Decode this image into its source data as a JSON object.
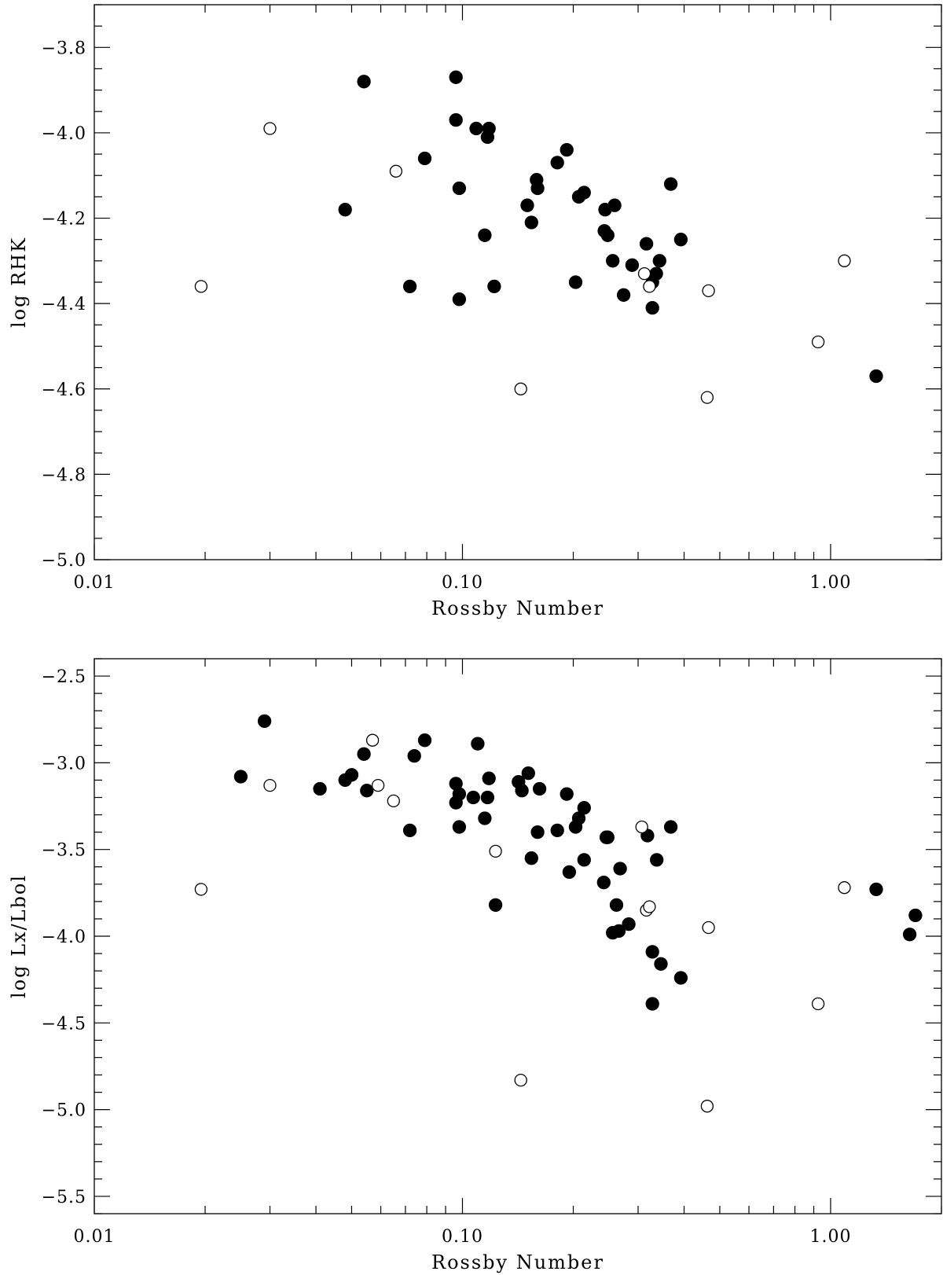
{
  "chart_data": [
    {
      "type": "scatter",
      "x_scale": "log",
      "xlim": [
        0.01,
        2.0
      ],
      "ylim": [
        -5.0,
        -3.7
      ],
      "xlabel": "Rossby Number",
      "ylabel": "log RHK",
      "x_ticks": [
        "0.01",
        "0.10",
        "1.00"
      ],
      "x_tick_values": [
        0.01,
        0.1,
        1.0
      ],
      "y_ticks": [
        "-3.8",
        "-4.0",
        "-4.2",
        "-4.4",
        "-4.6",
        "-4.8",
        "-5.0"
      ],
      "y_tick_values": [
        -3.8,
        -4.0,
        -4.2,
        -4.4,
        -4.6,
        -4.8,
        -5.0
      ],
      "y_minor_step": 0.05,
      "series": [
        {
          "marker": "filled-circle",
          "points": [
            [
              0.054,
              -3.88
            ],
            [
              0.096,
              -3.87
            ],
            [
              0.096,
              -3.97
            ],
            [
              0.109,
              -3.99
            ],
            [
              0.118,
              -3.99
            ],
            [
              0.117,
              -4.01
            ],
            [
              0.079,
              -4.06
            ],
            [
              0.192,
              -4.04
            ],
            [
              0.181,
              -4.07
            ],
            [
              0.159,
              -4.11
            ],
            [
              0.16,
              -4.13
            ],
            [
              0.098,
              -4.13
            ],
            [
              0.214,
              -4.14
            ],
            [
              0.207,
              -4.15
            ],
            [
              0.368,
              -4.12
            ],
            [
              0.15,
              -4.17
            ],
            [
              0.259,
              -4.17
            ],
            [
              0.244,
              -4.18
            ],
            [
              0.048,
              -4.18
            ],
            [
              0.154,
              -4.21
            ],
            [
              0.115,
              -4.24
            ],
            [
              0.243,
              -4.23
            ],
            [
              0.248,
              -4.24
            ],
            [
              0.316,
              -4.26
            ],
            [
              0.392,
              -4.25
            ],
            [
              0.256,
              -4.3
            ],
            [
              0.289,
              -4.31
            ],
            [
              0.343,
              -4.3
            ],
            [
              0.336,
              -4.33
            ],
            [
              0.328,
              -4.35
            ],
            [
              0.203,
              -4.35
            ],
            [
              0.122,
              -4.36
            ],
            [
              0.072,
              -4.36
            ],
            [
              0.098,
              -4.39
            ],
            [
              0.274,
              -4.38
            ],
            [
              0.328,
              -4.41
            ],
            [
              1.33,
              -4.57
            ]
          ]
        },
        {
          "marker": "open-circle",
          "points": [
            [
              0.0195,
              -4.36
            ],
            [
              0.03,
              -3.99
            ],
            [
              0.066,
              -4.09
            ],
            [
              0.144,
              -4.6
            ],
            [
              0.312,
              -4.33
            ],
            [
              0.322,
              -4.36
            ],
            [
              0.466,
              -4.37
            ],
            [
              0.462,
              -4.62
            ],
            [
              0.925,
              -4.49
            ],
            [
              1.09,
              -4.3
            ]
          ]
        }
      ]
    },
    {
      "type": "scatter",
      "x_scale": "log",
      "xlim": [
        0.01,
        2.0
      ],
      "ylim": [
        -5.6,
        -2.4
      ],
      "xlabel": "Rossby Number",
      "ylabel": "log Lx/Lbol",
      "x_ticks": [
        "0.01",
        "0.10",
        "1.00"
      ],
      "x_tick_values": [
        0.01,
        0.1,
        1.0
      ],
      "y_ticks": [
        "-2.5",
        "-3.0",
        "-3.5",
        "-4.0",
        "-4.5",
        "-5.0",
        "-5.5"
      ],
      "y_tick_values": [
        -2.5,
        -3.0,
        -3.5,
        -4.0,
        -4.5,
        -5.0,
        -5.5
      ],
      "y_minor_step": 0.1,
      "series": [
        {
          "marker": "filled-circle",
          "points": [
            [
              0.029,
              -2.76
            ],
            [
              0.025,
              -3.08
            ],
            [
              0.041,
              -3.15
            ],
            [
              0.048,
              -3.1
            ],
            [
              0.05,
              -3.07
            ],
            [
              0.054,
              -2.95
            ],
            [
              0.055,
              -3.16
            ],
            [
              0.072,
              -3.39
            ],
            [
              0.074,
              -2.96
            ],
            [
              0.079,
              -2.87
            ],
            [
              0.096,
              -3.12
            ],
            [
              0.096,
              -3.23
            ],
            [
              0.098,
              -3.18
            ],
            [
              0.098,
              -3.37
            ],
            [
              0.107,
              -3.2
            ],
            [
              0.11,
              -2.89
            ],
            [
              0.115,
              -3.32
            ],
            [
              0.118,
              -3.09
            ],
            [
              0.117,
              -3.2
            ],
            [
              0.123,
              -3.82
            ],
            [
              0.142,
              -3.11
            ],
            [
              0.145,
              -3.16
            ],
            [
              0.151,
              -3.06
            ],
            [
              0.154,
              -3.55
            ],
            [
              0.16,
              -3.4
            ],
            [
              0.162,
              -3.15
            ],
            [
              0.181,
              -3.39
            ],
            [
              0.192,
              -3.18
            ],
            [
              0.195,
              -3.63
            ],
            [
              0.203,
              -3.37
            ],
            [
              0.207,
              -3.32
            ],
            [
              0.214,
              -3.26
            ],
            [
              0.214,
              -3.56
            ],
            [
              0.242,
              -3.69
            ],
            [
              0.246,
              -3.43
            ],
            [
              0.248,
              -3.43
            ],
            [
              0.256,
              -3.98
            ],
            [
              0.262,
              -3.82
            ],
            [
              0.266,
              -3.97
            ],
            [
              0.268,
              -3.61
            ],
            [
              0.283,
              -3.93
            ],
            [
              0.318,
              -3.42
            ],
            [
              0.328,
              -4.09
            ],
            [
              0.328,
              -4.39
            ],
            [
              0.337,
              -3.56
            ],
            [
              0.346,
              -4.16
            ],
            [
              0.368,
              -3.37
            ],
            [
              0.392,
              -4.24
            ],
            [
              1.33,
              -3.73
            ],
            [
              1.64,
              -3.99
            ],
            [
              1.7,
              -3.88
            ]
          ]
        },
        {
          "marker": "open-circle",
          "points": [
            [
              0.0195,
              -3.73
            ],
            [
              0.03,
              -3.13
            ],
            [
              0.057,
              -2.87
            ],
            [
              0.059,
              -3.13
            ],
            [
              0.065,
              -3.22
            ],
            [
              0.123,
              -3.51
            ],
            [
              0.144,
              -4.83
            ],
            [
              0.307,
              -3.37
            ],
            [
              0.316,
              -3.85
            ],
            [
              0.322,
              -3.83
            ],
            [
              0.466,
              -3.95
            ],
            [
              0.462,
              -4.98
            ],
            [
              0.925,
              -4.39
            ],
            [
              1.09,
              -3.72
            ]
          ]
        }
      ]
    }
  ]
}
